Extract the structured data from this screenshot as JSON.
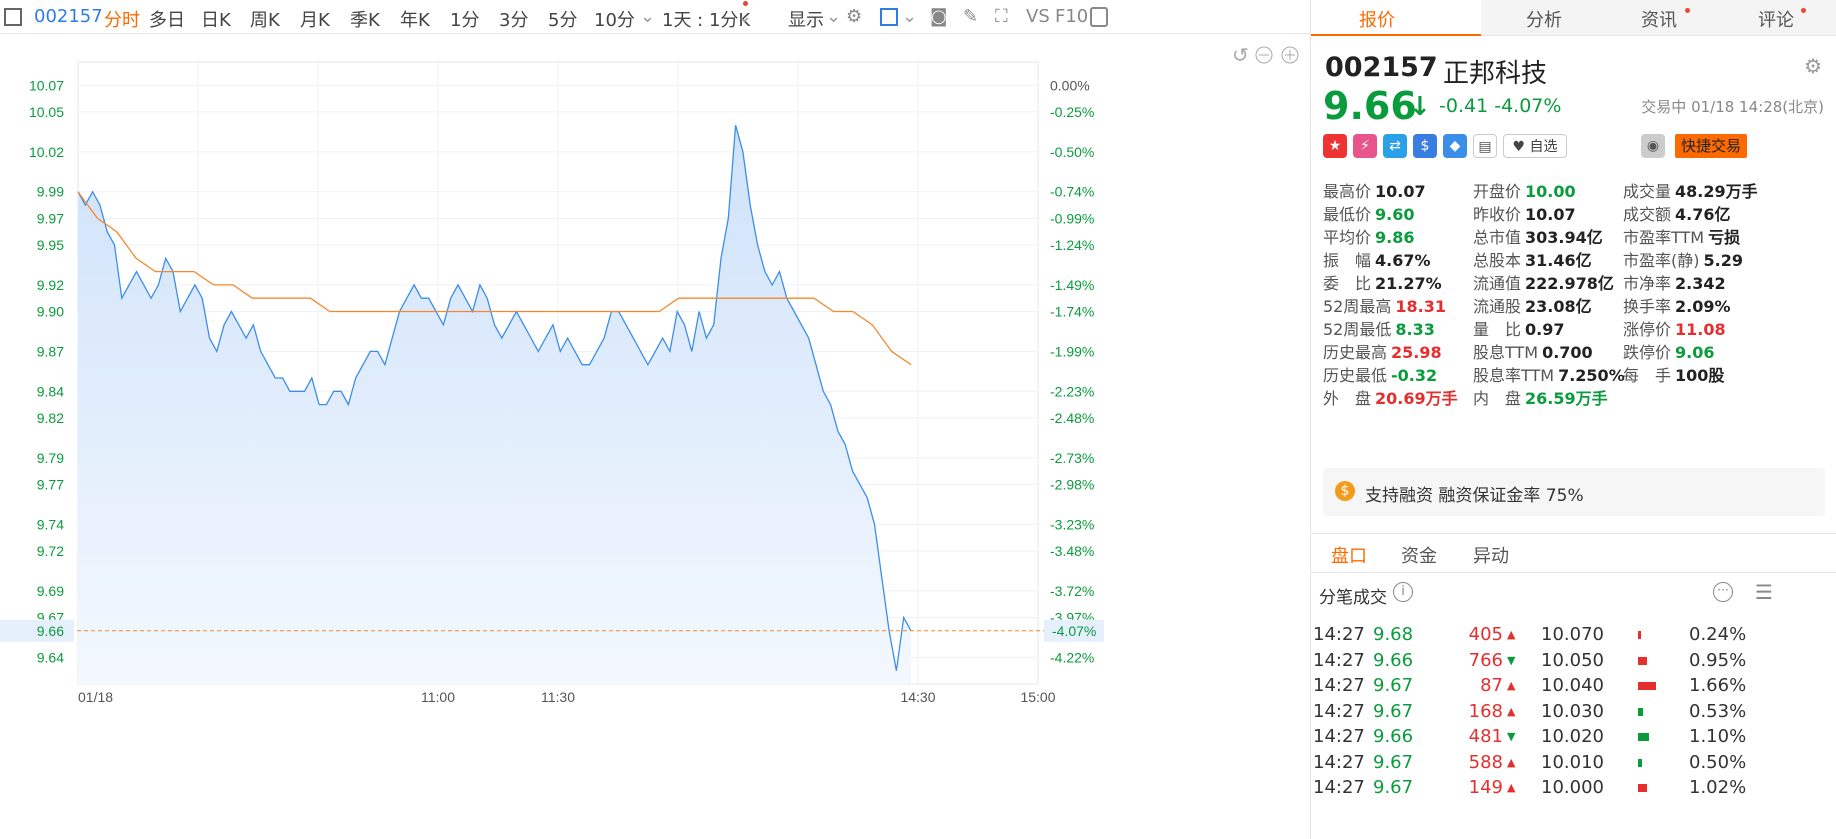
{
  "toolbar": {
    "code": "002157",
    "items": [
      "分时",
      "多日",
      "日K",
      "周K",
      "月K",
      "季K",
      "年K",
      "1分",
      "3分",
      "5分",
      "10分",
      "1天 : 1分K"
    ],
    "display": "显示",
    "vs": "VS",
    "f10": "F10",
    "colors": {
      "active": "#ff6a00",
      "code": "#2f7ce6"
    }
  },
  "chart_data": {
    "type": "line",
    "x_tick_labels": [
      "01/18",
      "11:00",
      "11:30",
      "14:30",
      "15:00"
    ],
    "y_ticks": [
      "10.07",
      "10.05",
      "10.02",
      "9.99",
      "9.97",
      "9.95",
      "9.92",
      "9.90",
      "9.87",
      "9.84",
      "9.82",
      "9.79",
      "9.77",
      "9.74",
      "9.72",
      "9.69",
      "9.67",
      "9.64"
    ],
    "pct_ticks": [
      "0.00%",
      "-0.25%",
      "-0.50%",
      "-0.74%",
      "-0.99%",
      "-1.24%",
      "-1.49%",
      "-1.74%",
      "-1.99%",
      "-2.23%",
      "-2.48%",
      "-2.73%",
      "-2.98%",
      "-3.23%",
      "-3.48%",
      "-3.72%",
      "-3.97%",
      "-4.22%"
    ],
    "ylim": [
      9.62,
      10.08
    ],
    "prev_close": 10.07,
    "current_price": "9.66",
    "current_pct": "-4.07%",
    "price_series_color": "#3d8ee8",
    "avg_series_color": "#f5882c",
    "price": [
      9.99,
      9.98,
      9.99,
      9.98,
      9.96,
      9.95,
      9.91,
      9.92,
      9.93,
      9.92,
      9.91,
      9.92,
      9.94,
      9.93,
      9.9,
      9.91,
      9.92,
      9.91,
      9.88,
      9.87,
      9.89,
      9.9,
      9.89,
      9.88,
      9.89,
      9.87,
      9.86,
      9.85,
      9.85,
      9.84,
      9.84,
      9.84,
      9.85,
      9.83,
      9.83,
      9.84,
      9.84,
      9.83,
      9.85,
      9.86,
      9.87,
      9.87,
      9.86,
      9.88,
      9.9,
      9.91,
      9.92,
      9.91,
      9.91,
      9.9,
      9.89,
      9.91,
      9.92,
      9.91,
      9.9,
      9.92,
      9.91,
      9.89,
      9.88,
      9.89,
      9.9,
      9.89,
      9.88,
      9.87,
      9.88,
      9.89,
      9.87,
      9.88,
      9.87,
      9.86,
      9.86,
      9.87,
      9.88,
      9.9,
      9.9,
      9.89,
      9.88,
      9.87,
      9.86,
      9.87,
      9.88,
      9.87,
      9.9,
      9.89,
      9.87,
      9.9,
      9.88,
      9.89,
      9.94,
      9.97,
      10.04,
      10.02,
      9.98,
      9.95,
      9.93,
      9.92,
      9.93,
      9.91,
      9.9,
      9.89,
      9.88,
      9.86,
      9.84,
      9.83,
      9.81,
      9.8,
      9.78,
      9.77,
      9.76,
      9.74,
      9.7,
      9.66,
      9.63,
      9.67,
      9.66
    ],
    "avg": [
      9.99,
      9.97,
      9.96,
      9.94,
      9.93,
      9.93,
      9.93,
      9.92,
      9.92,
      9.91,
      9.91,
      9.91,
      9.91,
      9.9,
      9.9,
      9.9,
      9.9,
      9.9,
      9.9,
      9.9,
      9.9,
      9.9,
      9.9,
      9.9,
      9.9,
      9.9,
      9.9,
      9.9,
      9.9,
      9.9,
      9.9,
      9.91,
      9.91,
      9.91,
      9.91,
      9.91,
      9.91,
      9.91,
      9.91,
      9.9,
      9.9,
      9.89,
      9.87,
      9.86
    ]
  },
  "panel": {
    "tabs": [
      "报价",
      "分析",
      "资讯",
      "评论"
    ],
    "code": "002157",
    "name": "正邦科技",
    "price": "9.66",
    "arrow": "↓",
    "change": "-0.41",
    "change_pct": "-4.07%",
    "status": "交易中 01/18 14:28(北京)",
    "watch_label": "自选",
    "quick_trade": "快捷交易",
    "quotes": [
      [
        {
          "l": "最高价",
          "v": "10.07",
          "c": "nt"
        },
        {
          "l": "开盘价",
          "v": "10.00",
          "c": "dn"
        },
        {
          "l": "成交量",
          "v": "48.29万手",
          "c": "nt"
        }
      ],
      [
        {
          "l": "最低价",
          "v": "9.60",
          "c": "dn"
        },
        {
          "l": "昨收价",
          "v": "10.07",
          "c": "nt"
        },
        {
          "l": "成交额",
          "v": "4.76亿",
          "c": "nt"
        }
      ],
      [
        {
          "l": "平均价",
          "v": "9.86",
          "c": "dn"
        },
        {
          "l": "总市值",
          "v": "303.94亿",
          "c": "nt"
        },
        {
          "l": "市盈率TTM",
          "v": "亏损",
          "c": "nt"
        }
      ],
      [
        {
          "l": "振　幅",
          "v": "4.67%",
          "c": "nt"
        },
        {
          "l": "总股本",
          "v": "31.46亿",
          "c": "nt"
        },
        {
          "l": "市盈率(静)",
          "v": "5.29",
          "c": "nt"
        }
      ],
      [
        {
          "l": "委　比",
          "v": "21.27%",
          "c": "nt"
        },
        {
          "l": "流通值",
          "v": "222.978亿",
          "c": "nt"
        },
        {
          "l": "市净率",
          "v": "2.342",
          "c": "nt"
        }
      ],
      [
        {
          "l": "52周最高",
          "v": "18.31",
          "c": "up"
        },
        {
          "l": "流通股",
          "v": "23.08亿",
          "c": "nt"
        },
        {
          "l": "换手率",
          "v": "2.09%",
          "c": "nt"
        }
      ],
      [
        {
          "l": "52周最低",
          "v": "8.33",
          "c": "dn"
        },
        {
          "l": "量　比",
          "v": "0.97",
          "c": "nt"
        },
        {
          "l": "涨停价",
          "v": "11.08",
          "c": "up"
        }
      ],
      [
        {
          "l": "历史最高",
          "v": "25.98",
          "c": "up"
        },
        {
          "l": "股息TTM",
          "v": "0.700",
          "c": "nt"
        },
        {
          "l": "跌停价",
          "v": "9.06",
          "c": "dn"
        }
      ],
      [
        {
          "l": "历史最低",
          "v": "-0.32",
          "c": "dn"
        },
        {
          "l": "股息率TTM",
          "v": "7.250%",
          "c": "nt"
        },
        {
          "l": "每　手",
          "v": "100股",
          "c": "nt"
        }
      ],
      [
        {
          "l": "外　盘",
          "v": "20.69万手",
          "c": "up"
        },
        {
          "l": "内　盘",
          "v": "26.59万手",
          "c": "dn"
        },
        {
          "l": "",
          "v": "",
          "c": "nt"
        }
      ]
    ],
    "margin_text": "支持融资 融资保证金率 75%",
    "section_tabs": [
      "盘口",
      "资金",
      "异动"
    ],
    "ticks_title": "分笔成交",
    "ticks": [
      {
        "t": "14:27",
        "p": "9.68",
        "vol": "405",
        "dir": "up",
        "lvl": "10.070",
        "pct": "0.24%",
        "side": "up",
        "bar": 0.08
      },
      {
        "t": "14:27",
        "p": "9.66",
        "vol": "766",
        "dir": "dn",
        "lvl": "10.050",
        "pct": "0.95%",
        "side": "up",
        "bar": 0.45
      },
      {
        "t": "14:27",
        "p": "9.67",
        "vol": "87",
        "dir": "up",
        "lvl": "10.040",
        "pct": "1.66%",
        "side": "up",
        "bar": 0.9
      },
      {
        "t": "14:27",
        "p": "9.67",
        "vol": "168",
        "dir": "up",
        "lvl": "10.030",
        "pct": "0.53%",
        "side": "dn",
        "bar": 0.25
      },
      {
        "t": "14:27",
        "p": "9.66",
        "vol": "481",
        "dir": "dn",
        "lvl": "10.020",
        "pct": "1.10%",
        "side": "dn",
        "bar": 0.55
      },
      {
        "t": "14:27",
        "p": "9.67",
        "vol": "588",
        "dir": "up",
        "lvl": "10.010",
        "pct": "0.50%",
        "side": "dn",
        "bar": 0.22
      },
      {
        "t": "14:27",
        "p": "9.67",
        "vol": "149",
        "dir": "up",
        "lvl": "10.000",
        "pct": "1.02%",
        "side": "up",
        "bar": 0.45
      }
    ]
  }
}
